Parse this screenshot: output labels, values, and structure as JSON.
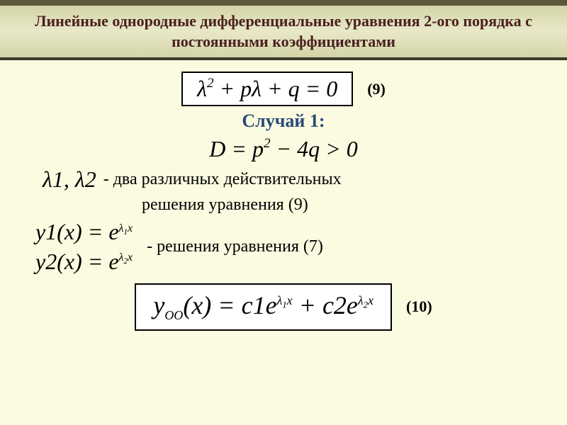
{
  "header": {
    "title": "Линейные однородные дифференциальные уравнения 2-ого порядка с постоянными коэффициентами"
  },
  "eq9": {
    "label": "(9)"
  },
  "case": {
    "label": "Случай 1:"
  },
  "roots": {
    "desc1": "- два различных действительных",
    "desc2": "решения уравнения (9)"
  },
  "solutions": {
    "desc": "- решения уравнения (7)"
  },
  "eq10": {
    "label": "(10)"
  },
  "colors": {
    "background": "#fafbe0",
    "header_gradient_mid": "#e8e8c8",
    "header_border_top": "#5a5a3a",
    "header_text": "#4a2020",
    "case_text": "#2a4a7a",
    "box_bg": "#ffffff"
  }
}
